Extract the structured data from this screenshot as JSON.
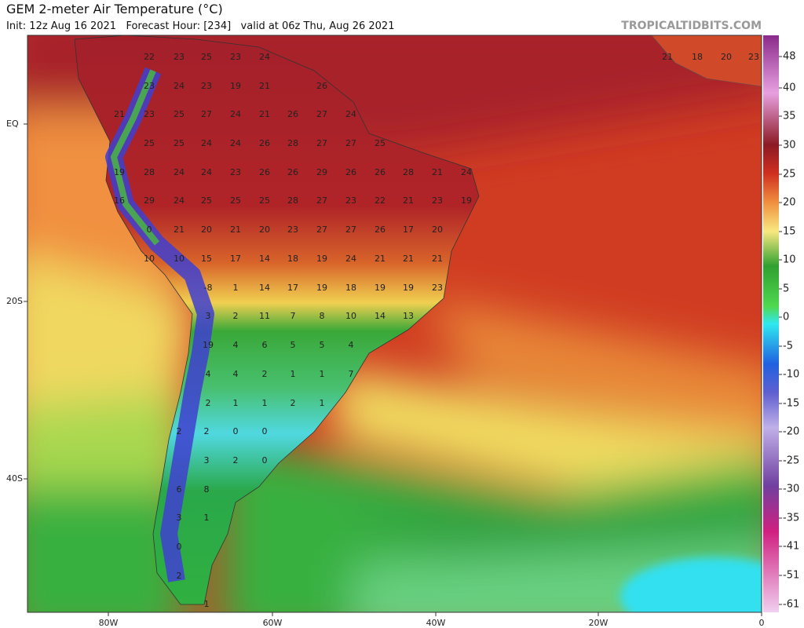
{
  "header": {
    "title": "GEM 2-meter Air Temperature (°C)",
    "subtitle": "Init: 12z Aug 16 2021   Forecast Hour: [234]   valid at 06z Thu, Aug 26 2021",
    "site": "TROPICALTIDBITS.COM"
  },
  "colorbar": {
    "labels": [
      "48",
      "40",
      "35",
      "30",
      "25",
      "20",
      "15",
      "10",
      "5",
      "0",
      "-5",
      "-10",
      "-15",
      "-20",
      "-25",
      "-30",
      "-35",
      "-41",
      "-51",
      "-61"
    ]
  },
  "latitude_labels": [
    "EQ",
    "20S",
    "40S"
  ],
  "longitude_labels": [
    "80W",
    "60W",
    "40W",
    "20W",
    "0"
  ],
  "map_labels": [
    [
      "22",
      "23",
      "25",
      "23",
      "24",
      "21",
      "18",
      "20",
      "23"
    ],
    [
      "23",
      "24",
      "23",
      "19",
      "21",
      "26"
    ],
    [
      "21",
      "23",
      "25",
      "27",
      "24",
      "21",
      "26",
      "27",
      "24"
    ],
    [
      "25",
      "25",
      "24",
      "24",
      "26",
      "28",
      "27",
      "27",
      "25"
    ],
    [
      "19",
      "28",
      "24",
      "24",
      "23",
      "26",
      "26",
      "29",
      "26",
      "26",
      "28",
      "21",
      "24"
    ],
    [
      "16",
      "29",
      "24",
      "25",
      "25",
      "25",
      "28",
      "27",
      "23",
      "22",
      "21",
      "23",
      "19"
    ],
    [
      "0",
      "21",
      "20",
      "21",
      "20",
      "23",
      "27",
      "27",
      "26",
      "17",
      "20"
    ],
    [
      "10",
      "10",
      "15",
      "17",
      "14",
      "18",
      "19",
      "24",
      "21",
      "21",
      "21"
    ],
    [
      "-8",
      "1",
      "14",
      "17",
      "19",
      "18",
      "19",
      "19",
      "23"
    ],
    [
      "3",
      "2",
      "11",
      "7",
      "8",
      "10",
      "14",
      "13"
    ],
    [
      "19",
      "4",
      "6",
      "5",
      "5",
      "4"
    ],
    [
      "4",
      "4",
      "2",
      "1",
      "1",
      "7"
    ],
    [
      "2",
      "1",
      "1",
      "2",
      "1"
    ],
    [
      "2",
      "2",
      "0",
      "0"
    ],
    [
      "3",
      "2",
      "0"
    ],
    [
      "6",
      "8"
    ],
    [
      "3",
      "1"
    ],
    [
      "0"
    ],
    [
      "2"
    ],
    [
      "1"
    ]
  ]
}
